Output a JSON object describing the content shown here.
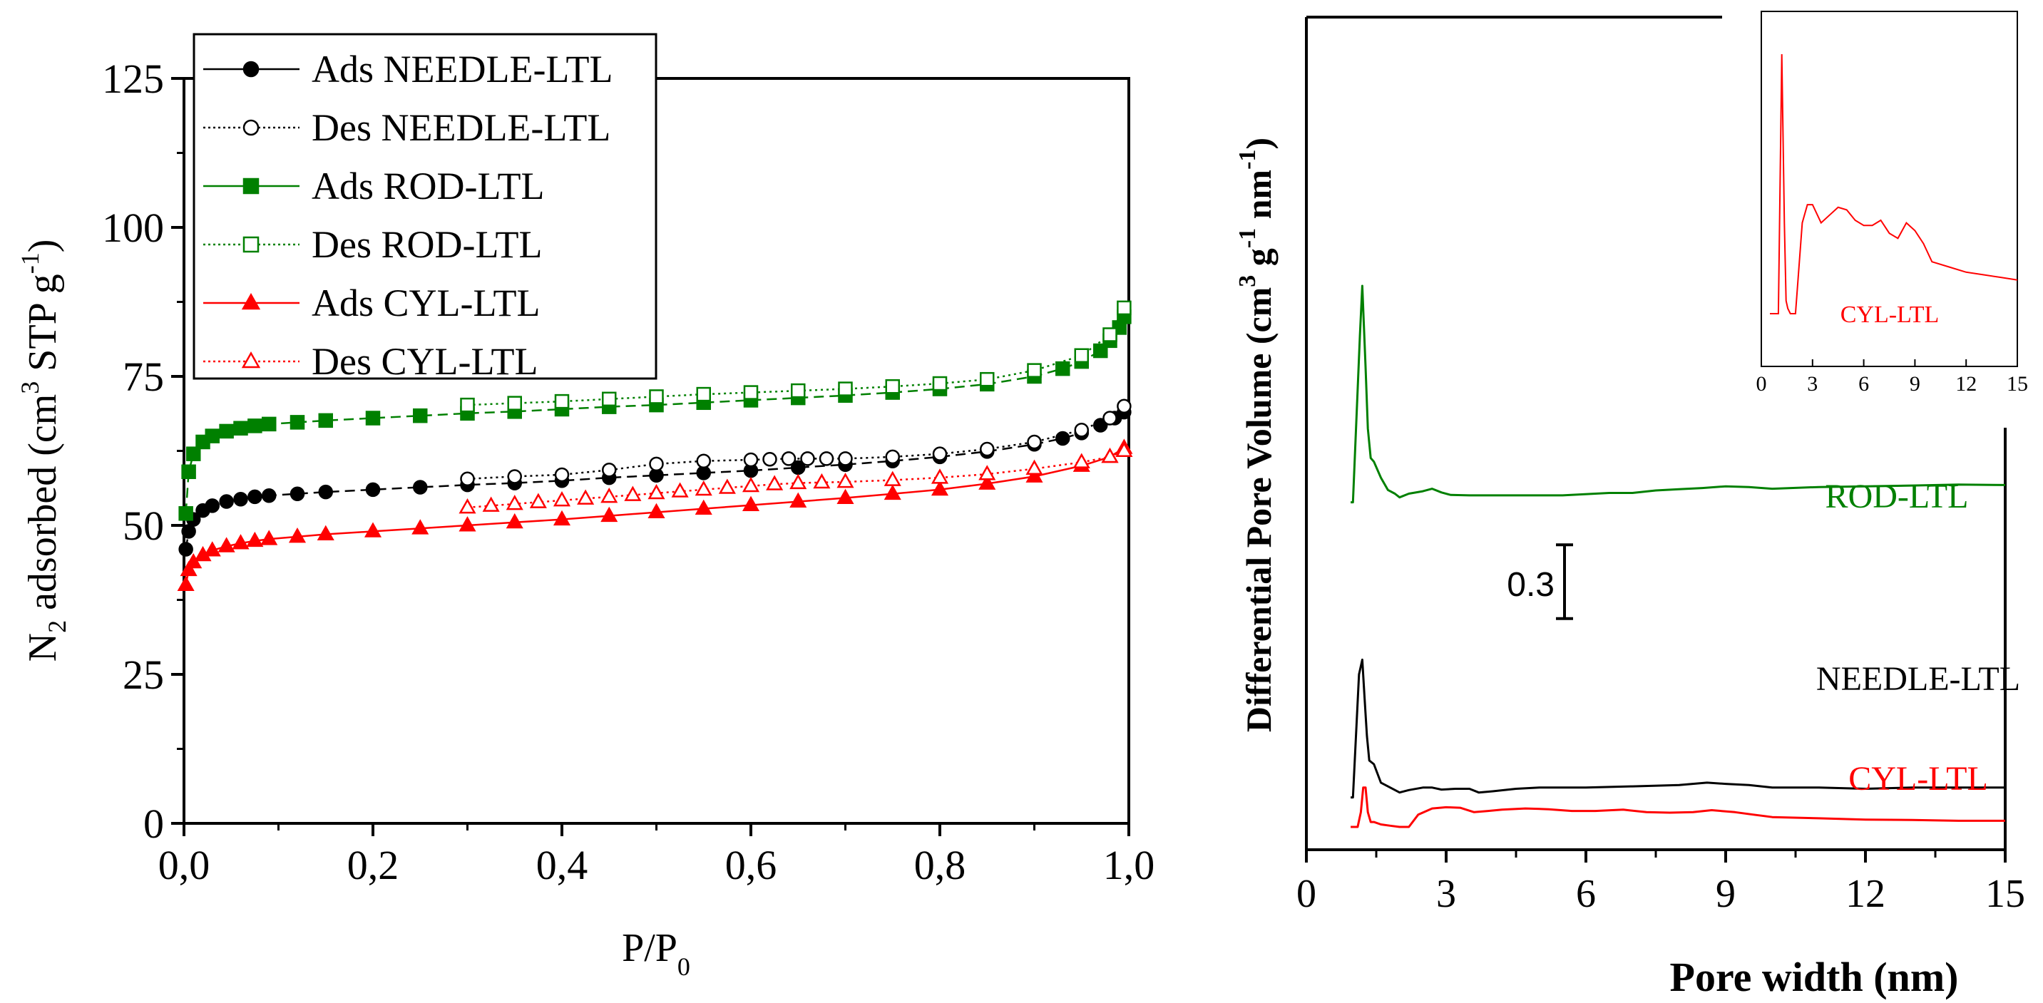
{
  "chart_data": [
    {
      "type": "scatter",
      "title": "",
      "xlabel": "P/P",
      "xlabel_sub": "0",
      "ylabel": {
        "part1": "N",
        "sub1": "2",
        "part2": " adsorbed (cm",
        "sup1": "3",
        "part3": " STP g",
        "sup2": "-1",
        "part4": ")"
      },
      "xlim": [
        0,
        1
      ],
      "ylim": [
        0,
        125
      ],
      "xticks": [
        "0,0",
        "0,2",
        "0,4",
        "0,6",
        "0,8",
        "1,0"
      ],
      "yticks": [
        "0",
        "25",
        "50",
        "75",
        "100",
        "125"
      ],
      "legend_position": "top-left",
      "series": [
        {
          "name": "Ads NEEDLE-LTL",
          "color": "#000000",
          "marker": "filled-circle",
          "line": "dashed",
          "points": [
            [
              0.002,
              46
            ],
            [
              0.005,
              49
            ],
            [
              0.01,
              51
            ],
            [
              0.02,
              52.5
            ],
            [
              0.03,
              53.3
            ],
            [
              0.045,
              54
            ],
            [
              0.06,
              54.4
            ],
            [
              0.075,
              54.8
            ],
            [
              0.09,
              55
            ],
            [
              0.12,
              55.3
            ],
            [
              0.15,
              55.6
            ],
            [
              0.2,
              56
            ],
            [
              0.25,
              56.4
            ],
            [
              0.3,
              56.8
            ],
            [
              0.35,
              57.1
            ],
            [
              0.4,
              57.5
            ],
            [
              0.45,
              58
            ],
            [
              0.5,
              58.4
            ],
            [
              0.55,
              58.8
            ],
            [
              0.6,
              59.2
            ],
            [
              0.65,
              59.7
            ],
            [
              0.7,
              60.2
            ],
            [
              0.75,
              60.8
            ],
            [
              0.8,
              61.5
            ],
            [
              0.85,
              62.4
            ],
            [
              0.9,
              63.6
            ],
            [
              0.93,
              64.6
            ],
            [
              0.95,
              65.5
            ],
            [
              0.97,
              66.8
            ],
            [
              0.985,
              68
            ],
            [
              0.995,
              69
            ]
          ]
        },
        {
          "name": "Des NEEDLE-LTL",
          "color": "#000000",
          "marker": "open-circle",
          "line": "dotted",
          "points": [
            [
              0.3,
              57.8
            ],
            [
              0.35,
              58.2
            ],
            [
              0.4,
              58.5
            ],
            [
              0.45,
              59.3
            ],
            [
              0.5,
              60.3
            ],
            [
              0.55,
              60.8
            ],
            [
              0.6,
              61
            ],
            [
              0.62,
              61.1
            ],
            [
              0.64,
              61.2
            ],
            [
              0.66,
              61.2
            ],
            [
              0.68,
              61.2
            ],
            [
              0.7,
              61.2
            ],
            [
              0.75,
              61.5
            ],
            [
              0.8,
              62
            ],
            [
              0.85,
              62.8
            ],
            [
              0.9,
              64
            ],
            [
              0.95,
              66
            ],
            [
              0.98,
              68
            ],
            [
              0.995,
              70
            ]
          ]
        },
        {
          "name": "Ads ROD-LTL",
          "color": "#008000",
          "marker": "filled-square",
          "line": "dashed",
          "points": [
            [
              0.002,
              52
            ],
            [
              0.005,
              59
            ],
            [
              0.01,
              62
            ],
            [
              0.02,
              64
            ],
            [
              0.03,
              65
            ],
            [
              0.045,
              65.8
            ],
            [
              0.06,
              66.3
            ],
            [
              0.075,
              66.7
            ],
            [
              0.09,
              67
            ],
            [
              0.12,
              67.3
            ],
            [
              0.15,
              67.6
            ],
            [
              0.2,
              68
            ],
            [
              0.25,
              68.4
            ],
            [
              0.3,
              68.8
            ],
            [
              0.35,
              69.1
            ],
            [
              0.4,
              69.5
            ],
            [
              0.45,
              69.9
            ],
            [
              0.5,
              70.2
            ],
            [
              0.55,
              70.6
            ],
            [
              0.6,
              71
            ],
            [
              0.65,
              71.4
            ],
            [
              0.7,
              71.8
            ],
            [
              0.75,
              72.3
            ],
            [
              0.8,
              72.9
            ],
            [
              0.85,
              73.7
            ],
            [
              0.9,
              75
            ],
            [
              0.93,
              76.3
            ],
            [
              0.95,
              77.5
            ],
            [
              0.97,
              79.3
            ],
            [
              0.98,
              81
            ],
            [
              0.99,
              83.2
            ],
            [
              0.995,
              85
            ]
          ]
        },
        {
          "name": "Des ROD-LTL",
          "color": "#008000",
          "marker": "open-square",
          "line": "dotted",
          "points": [
            [
              0.3,
              70.2
            ],
            [
              0.35,
              70.5
            ],
            [
              0.4,
              70.8
            ],
            [
              0.45,
              71.2
            ],
            [
              0.5,
              71.6
            ],
            [
              0.55,
              72
            ],
            [
              0.6,
              72.3
            ],
            [
              0.65,
              72.6
            ],
            [
              0.7,
              72.9
            ],
            [
              0.75,
              73.3
            ],
            [
              0.8,
              73.8
            ],
            [
              0.85,
              74.5
            ],
            [
              0.9,
              76
            ],
            [
              0.95,
              78.5
            ],
            [
              0.98,
              82
            ],
            [
              0.995,
              86.5
            ]
          ]
        },
        {
          "name": "Ads CYL-LTL",
          "color": "#ff0000",
          "marker": "filled-triangle",
          "line": "solid",
          "points": [
            [
              0.002,
              40
            ],
            [
              0.005,
              42.5
            ],
            [
              0.01,
              43.8
            ],
            [
              0.02,
              45
            ],
            [
              0.03,
              45.8
            ],
            [
              0.045,
              46.5
            ],
            [
              0.06,
              47
            ],
            [
              0.075,
              47.4
            ],
            [
              0.09,
              47.7
            ],
            [
              0.12,
              48.1
            ],
            [
              0.15,
              48.5
            ],
            [
              0.2,
              49
            ],
            [
              0.25,
              49.5
            ],
            [
              0.3,
              50
            ],
            [
              0.35,
              50.5
            ],
            [
              0.4,
              51
            ],
            [
              0.45,
              51.6
            ],
            [
              0.5,
              52.2
            ],
            [
              0.55,
              52.8
            ],
            [
              0.6,
              53.4
            ],
            [
              0.65,
              54
            ],
            [
              0.7,
              54.6
            ],
            [
              0.75,
              55.3
            ],
            [
              0.8,
              56
            ],
            [
              0.85,
              57
            ],
            [
              0.9,
              58.2
            ],
            [
              0.95,
              60
            ],
            [
              0.98,
              61.5
            ],
            [
              0.995,
              63
            ]
          ]
        },
        {
          "name": "Des CYL-LTL",
          "color": "#ff0000",
          "marker": "open-triangle",
          "line": "dotted",
          "points": [
            [
              0.3,
              53
            ],
            [
              0.325,
              53.3
            ],
            [
              0.35,
              53.6
            ],
            [
              0.375,
              53.9
            ],
            [
              0.4,
              54.2
            ],
            [
              0.425,
              54.5
            ],
            [
              0.45,
              54.8
            ],
            [
              0.475,
              55.1
            ],
            [
              0.5,
              55.4
            ],
            [
              0.525,
              55.7
            ],
            [
              0.55,
              56
            ],
            [
              0.575,
              56.3
            ],
            [
              0.6,
              56.6
            ],
            [
              0.625,
              56.9
            ],
            [
              0.65,
              57.1
            ],
            [
              0.675,
              57.2
            ],
            [
              0.7,
              57.3
            ],
            [
              0.75,
              57.6
            ],
            [
              0.8,
              58
            ],
            [
              0.85,
              58.6
            ],
            [
              0.9,
              59.5
            ],
            [
              0.95,
              60.6
            ],
            [
              0.98,
              61.5
            ],
            [
              0.995,
              62.5
            ]
          ]
        }
      ]
    },
    {
      "type": "line",
      "title": "",
      "xlabel": "Pore width (nm)",
      "ylabel": {
        "part1": "Differential Pore Volume (cm",
        "sup1": "3",
        "part2": " g",
        "sup2": "-1",
        "part3": " nm",
        "sup3": "-1",
        "part4": ")"
      },
      "xlim": [
        0,
        15
      ],
      "xticks": [
        "0",
        "3",
        "6",
        "9",
        "12",
        "15"
      ],
      "scale_bar_label": "0.3",
      "scale_bar_value": 0.3,
      "y_units": "offset curves (scale bar = 0.3)",
      "series": [
        {
          "name": "ROD-LTL",
          "color": "#008000",
          "baseline_offset": 1.32,
          "x": [
            0.95,
            1.0,
            1.15,
            1.2,
            1.27,
            1.32,
            1.38,
            1.45,
            1.6,
            1.75,
            1.9,
            2.0,
            2.2,
            2.5,
            2.7,
            2.9,
            3.1,
            3.5,
            4.0,
            5.5,
            6.5,
            7.0,
            7.5,
            8.0,
            8.5,
            9.0,
            9.5,
            10.0,
            11.0,
            12.0,
            13.0,
            14.0,
            15.0
          ],
          "values": [
            0.0,
            0.0,
            0.68,
            0.88,
            0.55,
            0.3,
            0.18,
            0.165,
            0.1,
            0.05,
            0.035,
            0.02,
            0.035,
            0.045,
            0.055,
            0.04,
            0.03,
            0.028,
            0.028,
            0.028,
            0.038,
            0.038,
            0.048,
            0.053,
            0.058,
            0.065,
            0.062,
            0.055,
            0.062,
            0.065,
            0.068,
            0.072,
            0.07
          ]
        },
        {
          "name": "NEEDLE-LTL",
          "color": "#000000",
          "baseline_offset": 0.12,
          "x": [
            0.95,
            1.0,
            1.13,
            1.2,
            1.25,
            1.3,
            1.35,
            1.45,
            1.6,
            1.75,
            2.0,
            2.2,
            2.5,
            2.7,
            2.9,
            3.2,
            3.5,
            3.7,
            4.0,
            4.5,
            5.0,
            5.5,
            6.0,
            7.0,
            8.0,
            8.6,
            9.0,
            9.5,
            10.0,
            11.0,
            12.0,
            13.0,
            14.0,
            15.0
          ],
          "values": [
            0.0,
            0.0,
            0.5,
            0.56,
            0.4,
            0.25,
            0.15,
            0.135,
            0.06,
            0.045,
            0.02,
            0.03,
            0.04,
            0.04,
            0.032,
            0.035,
            0.035,
            0.02,
            0.025,
            0.035,
            0.04,
            0.04,
            0.04,
            0.045,
            0.05,
            0.06,
            0.055,
            0.05,
            0.04,
            0.04,
            0.035,
            0.04,
            0.04,
            0.04
          ]
        },
        {
          "name": "CYL-LTL",
          "color": "#ff0000",
          "baseline_offset": 0.0,
          "x": [
            0.95,
            1.1,
            1.17,
            1.22,
            1.27,
            1.32,
            1.38,
            1.45,
            1.6,
            1.8,
            2.0,
            2.2,
            2.4,
            2.7,
            3.0,
            3.3,
            3.6,
            3.9,
            4.2,
            4.7,
            5.2,
            5.7,
            6.2,
            6.8,
            7.3,
            7.8,
            8.3,
            8.7,
            9.2,
            9.6,
            10.0,
            11.0,
            12.0,
            13.0,
            14.0,
            15.0
          ],
          "values": [
            0.0,
            0.0,
            0.06,
            0.16,
            0.16,
            0.06,
            0.02,
            0.02,
            0.01,
            0.005,
            0.0,
            0.0,
            0.05,
            0.075,
            0.08,
            0.078,
            0.06,
            0.065,
            0.07,
            0.075,
            0.072,
            0.065,
            0.065,
            0.07,
            0.06,
            0.058,
            0.06,
            0.068,
            0.06,
            0.05,
            0.04,
            0.035,
            0.03,
            0.028,
            0.025,
            0.025
          ]
        }
      ],
      "inset": {
        "series_name": "CYL-LTL",
        "label": "CYL-LTL",
        "color": "#ff0000",
        "xlim": [
          0,
          15
        ],
        "xticks": [
          "0",
          "3",
          "6",
          "9",
          "12",
          "15"
        ],
        "x": [
          0.5,
          1.0,
          1.2,
          1.35,
          1.45,
          1.55,
          1.7,
          2.0,
          2.4,
          2.7,
          3.0,
          3.5,
          4.0,
          4.5,
          5.0,
          5.5,
          6.0,
          6.5,
          7.0,
          7.5,
          8.0,
          8.5,
          9.0,
          9.5,
          10.0,
          11.0,
          12.0,
          13.0,
          14.0,
          15.0
        ],
        "values": [
          0.0,
          0.0,
          1.0,
          0.35,
          0.05,
          0.02,
          0.0,
          0.0,
          0.35,
          0.42,
          0.42,
          0.35,
          0.38,
          0.41,
          0.4,
          0.36,
          0.34,
          0.34,
          0.36,
          0.31,
          0.29,
          0.35,
          0.32,
          0.27,
          0.2,
          0.18,
          0.16,
          0.15,
          0.14,
          0.13
        ]
      }
    }
  ]
}
